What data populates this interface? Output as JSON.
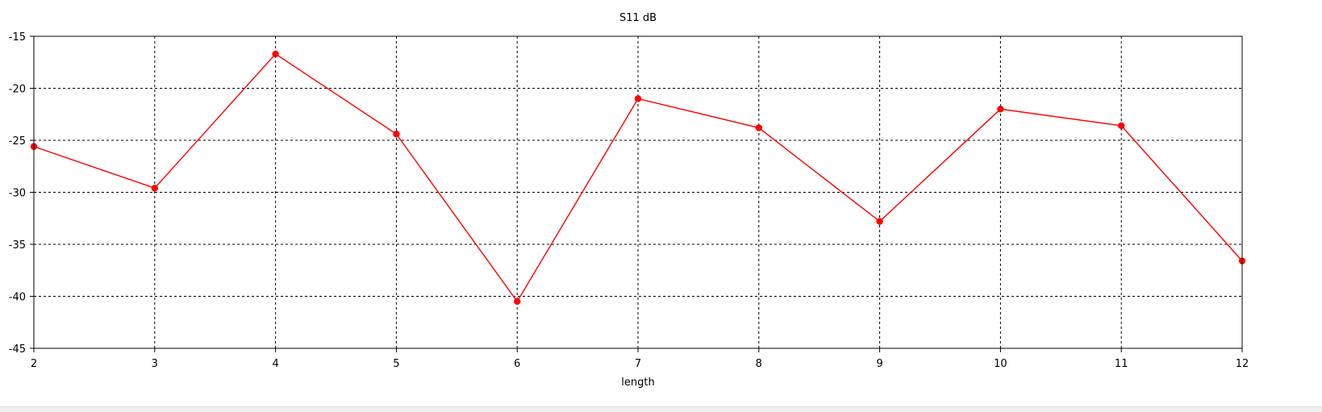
{
  "chart_data": {
    "type": "line",
    "title": "S11 dB",
    "xlabel": "length",
    "ylabel": "",
    "x": [
      2,
      3,
      4,
      5,
      6,
      7,
      8,
      9,
      10,
      11,
      12
    ],
    "series": [
      {
        "values": [
          -25.6,
          -29.6,
          -16.7,
          -24.4,
          -40.5,
          -21.0,
          -23.8,
          -32.8,
          -22.0,
          -23.6,
          -36.6
        ],
        "color": "#ff0000"
      }
    ],
    "xlim": [
      2,
      12
    ],
    "ylim": [
      -45,
      -15
    ],
    "xticks": [
      "2",
      "3",
      "4",
      "5",
      "6",
      "7",
      "8",
      "9",
      "10",
      "11",
      "12"
    ],
    "yticks": [
      "-15",
      "-20",
      "-25",
      "-30",
      "-35",
      "-40",
      "-45"
    ],
    "grid": true,
    "grid_style": "dashed",
    "marker": "circle"
  }
}
